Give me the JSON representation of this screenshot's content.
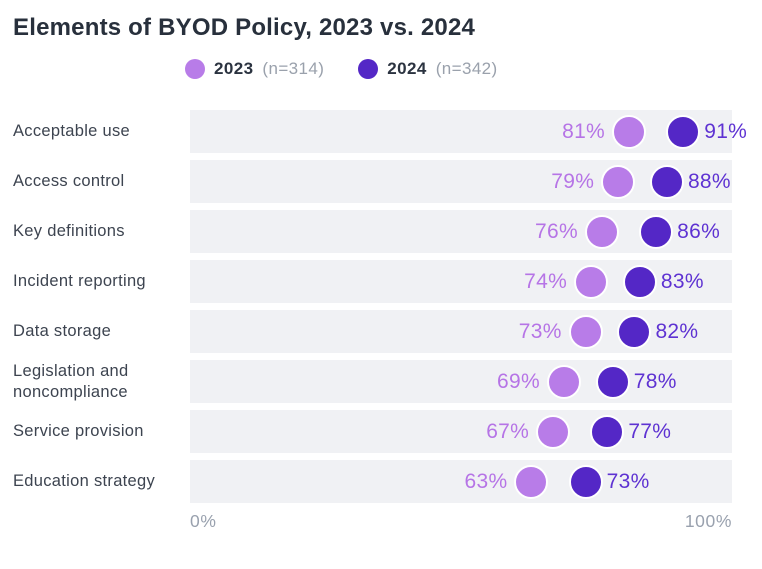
{
  "title": "Elements of BYOD Policy, 2023 vs. 2024",
  "legend": {
    "items": [
      {
        "year": "2023",
        "n": "(n=314)"
      },
      {
        "year": "2024",
        "n": "(n=342)"
      }
    ]
  },
  "axis": {
    "min_label": "0%",
    "max_label": "100%"
  },
  "colors": {
    "series_2023": "#b87ce8",
    "series_2024": "#5427c6",
    "value_text_2023": "#b674e6",
    "value_text_2024": "#5e32d2",
    "track": "#f0f1f4"
  },
  "chart_data": {
    "type": "scatter",
    "variant": "dot-plot",
    "title": "Elements of BYOD Policy, 2023 vs. 2024",
    "categories": [
      "Acceptable use",
      "Access control",
      "Key definitions",
      "Incident reporting",
      "Data storage",
      "Legislation and noncompliance",
      "Service provision",
      "Education strategy"
    ],
    "series": [
      {
        "name": "2023 (n=314)",
        "values": [
          81,
          79,
          76,
          74,
          73,
          69,
          67,
          63
        ],
        "labels": [
          "81%",
          "79%",
          "76%",
          "74%",
          "73%",
          "69%",
          "67%",
          "63%"
        ]
      },
      {
        "name": "2024 (n=342)",
        "values": [
          91,
          88,
          86,
          83,
          82,
          78,
          77,
          73
        ],
        "labels": [
          "91%",
          "88%",
          "86%",
          "83%",
          "82%",
          "78%",
          "77%",
          "73%"
        ]
      }
    ],
    "value_suffix": "%",
    "xlabel": "",
    "ylabel": "",
    "xlim": [
      0,
      100
    ],
    "x_tick_labels": [
      "0%",
      "100%"
    ],
    "grid": false,
    "legend_position": "top"
  }
}
